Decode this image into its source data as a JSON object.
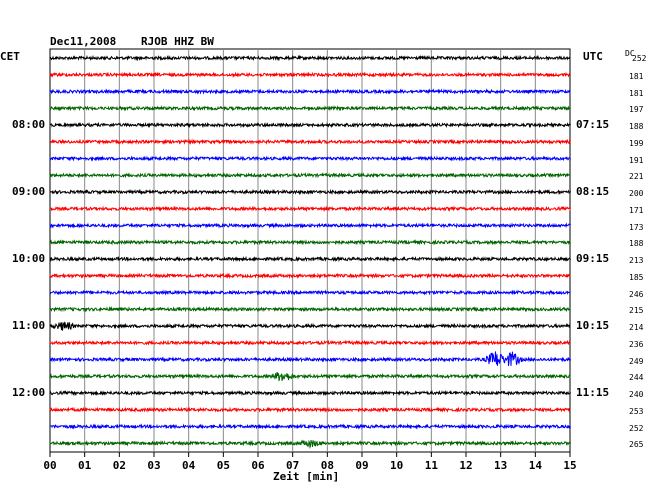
{
  "header": {
    "date": "Dec11,2008",
    "station": "RJOB HHZ BW",
    "left_zone": "CET",
    "right_zone": "UTC",
    "dc_label": "DC"
  },
  "chart_data": {
    "type": "line",
    "title": "Dec11,2008  RJOB HHZ BW",
    "xlabel": "Zeit [min]",
    "xlim": [
      0,
      15
    ],
    "x_ticks": [
      "00",
      "01",
      "02",
      "03",
      "04",
      "05",
      "06",
      "07",
      "08",
      "09",
      "10",
      "11",
      "12",
      "13",
      "14",
      "15"
    ],
    "traces_per_hour": 4,
    "trace_minutes": 15,
    "hour_labels_cet": [
      "08:00",
      "09:00",
      "10:00",
      "11:00",
      "12:00"
    ],
    "hour_labels_utc": [
      "07:15",
      "08:15",
      "09:15",
      "10:15",
      "11:15"
    ],
    "trace_colors": [
      "#000000",
      "#ff0000",
      "#0000ff",
      "#006400"
    ],
    "dc_values": [
      "252",
      "181",
      "181",
      "197",
      "188",
      "199",
      "191",
      "221",
      "200",
      "171",
      "173",
      "188",
      "213",
      "185",
      "246",
      "215",
      "214",
      "236",
      "249",
      "244",
      "240",
      "253",
      "252",
      "265"
    ],
    "events": [
      {
        "trace": 16,
        "minute": 0.4,
        "amplitude": 4
      },
      {
        "trace": 18,
        "minute": 12.85,
        "amplitude": 8
      },
      {
        "trace": 18,
        "minute": 13.3,
        "amplitude": 7
      },
      {
        "trace": 19,
        "minute": 6.7,
        "amplitude": 5
      },
      {
        "trace": 23,
        "minute": 7.5,
        "amplitude": 3
      }
    ],
    "grid": true
  }
}
